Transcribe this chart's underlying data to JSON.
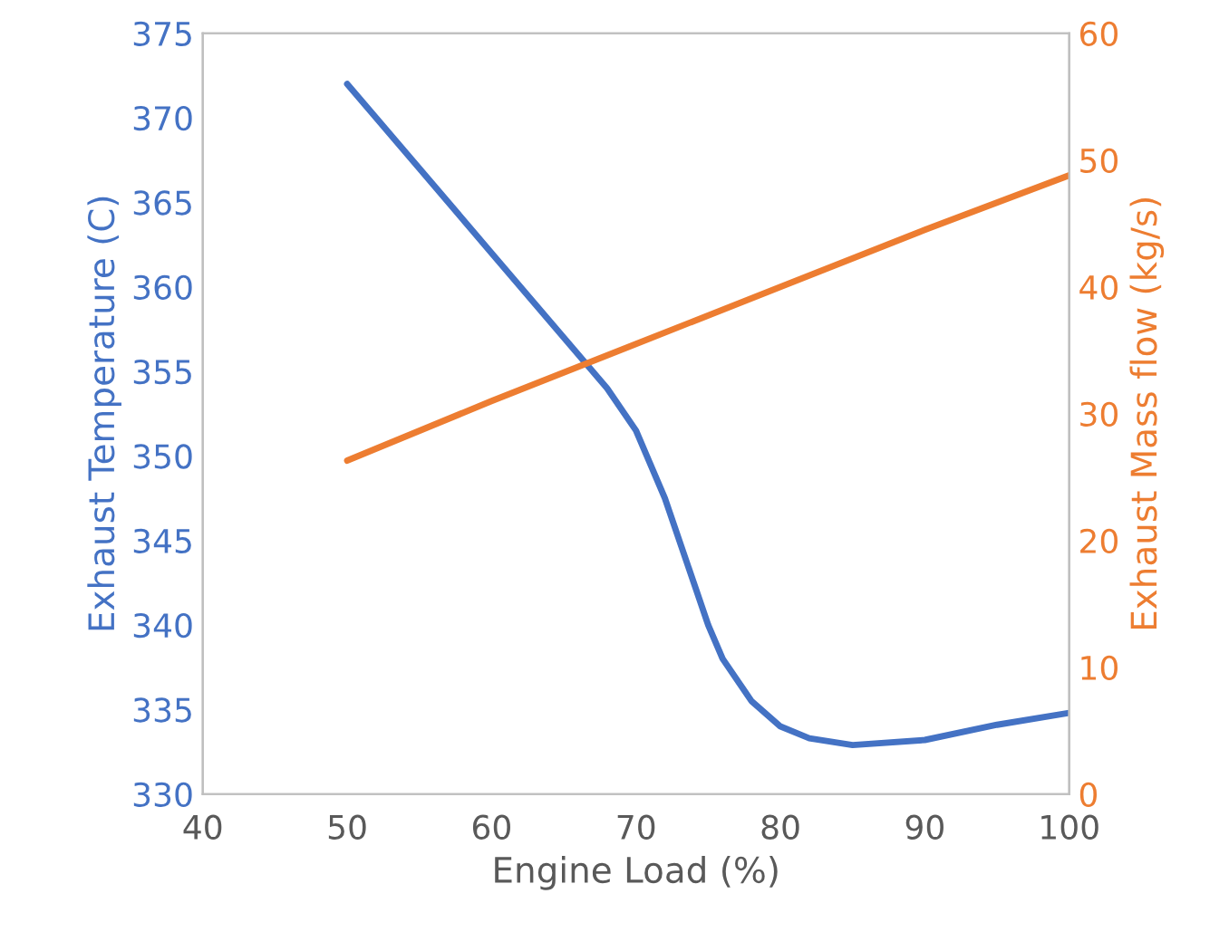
{
  "chart_data": {
    "type": "line",
    "xlabel": "Engine Load (%)",
    "ylabel": "Exhaust Temperature (C)",
    "y2label": "Exhaust Mass flow (kg/s)",
    "xlim": [
      40,
      100
    ],
    "xticks": [
      40,
      50,
      60,
      70,
      80,
      90,
      100
    ],
    "ylim": [
      330,
      375
    ],
    "yticks": [
      330,
      335,
      340,
      345,
      350,
      355,
      360,
      365,
      370,
      375
    ],
    "y2lim": [
      0,
      60
    ],
    "y2ticks": [
      0,
      10,
      20,
      30,
      40,
      50,
      60
    ],
    "grid": false,
    "marker": "none",
    "line_style": "solid",
    "series": [
      {
        "color": "#4472c4",
        "x": [
          50,
          55,
          60,
          65,
          68,
          70,
          72,
          74,
          75,
          76,
          78,
          80,
          82,
          85,
          90,
          95,
          100
        ],
        "values": [
          372,
          367,
          362,
          357,
          354,
          351.5,
          347.5,
          342.5,
          340,
          338,
          335.5,
          334,
          333.3,
          332.9,
          333.2,
          334.1,
          334.8
        ]
      },
      {
        "color": "#ed7d31",
        "axis": "y2",
        "x": [
          50,
          60,
          70,
          80,
          90,
          100
        ],
        "values": [
          26.3,
          31,
          35.5,
          40,
          44.5,
          48.8
        ]
      }
    ]
  }
}
